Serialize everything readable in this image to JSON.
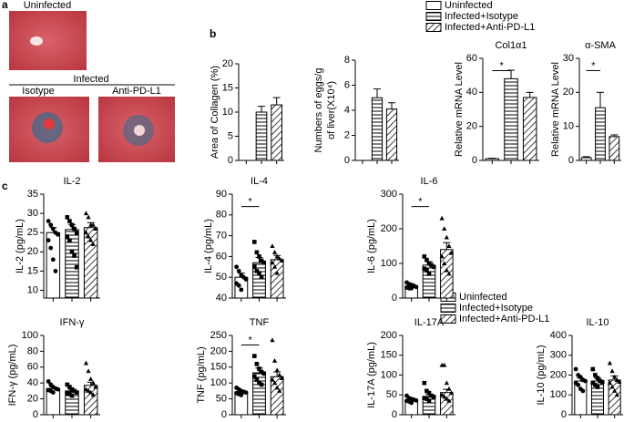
{
  "panels": {
    "a": "a",
    "b": "b",
    "c": "c",
    "uninfected": "Uninfected",
    "infected": "Infected",
    "isotype": "Isotype",
    "anti": "Anti-PD-L1"
  },
  "legends": [
    {
      "entries": [
        {
          "name": "Uninfected",
          "pattern": "blank"
        },
        {
          "name": "Infected+Isotype",
          "pattern": "hlines"
        },
        {
          "name": "Infected+Anti-PD-L1",
          "pattern": "diag"
        }
      ]
    },
    {
      "entries": [
        {
          "name": "Uninfected",
          "pattern": "blank"
        },
        {
          "name": "Infected+Isotype",
          "pattern": "hlines"
        },
        {
          "name": "Infected+Anti-PD-L1",
          "pattern": "diag"
        }
      ]
    }
  ],
  "chart_data": [
    {
      "type": "bar",
      "ylabel": "Area of Collagen (%)",
      "categories": [
        null,
        null,
        null
      ],
      "values": [
        null,
        10,
        11.5
      ],
      "errors": [
        null,
        1.2,
        1.5
      ],
      "ylim": [
        0,
        20
      ],
      "yticks": [
        0,
        5,
        10,
        15,
        20
      ]
    },
    {
      "type": "bar",
      "ylabel": [
        "Numbers of eggs/g",
        "of liver(X10⁴)"
      ],
      "categories": [
        null,
        null,
        null
      ],
      "values": [
        null,
        5,
        4.1
      ],
      "errors": [
        null,
        0.7,
        0.5
      ],
      "ylim": [
        0,
        8
      ],
      "yticks": [
        0,
        2,
        4,
        6,
        8
      ]
    },
    {
      "type": "bar",
      "title": "Col1α1",
      "ylabel": "Relative mRNA Level",
      "categories": [
        null,
        null,
        null
      ],
      "values": [
        1,
        48,
        37
      ],
      "errors": [
        0.3,
        5,
        3
      ],
      "ylim": [
        0,
        60
      ],
      "yticks": [
        0,
        20,
        40,
        60
      ],
      "significance": "*"
    },
    {
      "type": "bar",
      "title": "α-SMA",
      "ylabel": "Relative mRNA Level",
      "categories": [
        null,
        null,
        null
      ],
      "values": [
        0.8,
        15.5,
        7
      ],
      "errors": [
        0.3,
        4.5,
        0.5
      ],
      "ylim": [
        0,
        30
      ],
      "yticks": [
        0,
        10,
        20,
        30
      ],
      "significance": "*"
    },
    {
      "type": "bar",
      "title": "IL-2",
      "ylabel": "IL-2 (pg/mL)",
      "categories": [
        null,
        null,
        null
      ],
      "values": [
        25,
        25.8,
        26.3
      ],
      "errors": [
        1.3,
        1.3,
        1.3
      ],
      "ylim": [
        8,
        35
      ],
      "yticks": [
        10,
        15,
        20,
        25,
        30,
        35
      ],
      "points": [
        [
          28,
          27,
          26,
          25,
          24.5,
          23,
          21,
          18,
          15
        ],
        [
          29,
          28,
          27,
          26,
          25,
          24,
          23,
          20,
          19,
          16
        ],
        [
          30,
          29,
          27,
          27,
          26,
          25,
          24,
          23,
          22
        ]
      ]
    },
    {
      "type": "bar",
      "title": "IL-4",
      "ylabel": "IL-4 (pg/mL)",
      "categories": [
        null,
        null,
        null
      ],
      "values": [
        50,
        57,
        58.5
      ],
      "errors": [
        2,
        2.5,
        2
      ],
      "ylim": [
        40,
        90
      ],
      "yticks": [
        40,
        50,
        60,
        70,
        80,
        90
      ],
      "significance": "*",
      "points": [
        [
          55,
          53,
          51,
          50,
          49,
          47,
          46,
          44
        ],
        [
          67,
          62,
          60,
          58,
          57,
          55,
          53,
          52,
          50
        ],
        [
          65,
          62,
          60,
          59,
          58,
          57,
          55,
          52
        ]
      ]
    },
    {
      "type": "bar",
      "title": "IL-6",
      "ylabel": "IL-6 (pg/mL)",
      "categories": [
        null,
        null,
        null
      ],
      "values": [
        35,
        95,
        140
      ],
      "errors": [
        5,
        10,
        20
      ],
      "ylim": [
        0,
        300
      ],
      "yticks": [
        0,
        100,
        200,
        300
      ],
      "significance": "*",
      "points": [
        [
          45,
          40,
          38,
          35,
          32,
          30,
          28,
          28
        ],
        [
          120,
          110,
          100,
          95,
          90,
          85,
          80,
          70
        ],
        [
          230,
          200,
          175,
          150,
          130,
          120,
          100,
          80,
          70
        ]
      ]
    },
    {
      "type": "bar",
      "title": "IFN-γ",
      "ylabel": "IFN-γ (pg/mL)",
      "categories": [
        null,
        null,
        null
      ],
      "values": [
        33,
        30,
        37
      ],
      "errors": [
        2,
        2,
        4
      ],
      "ylim": [
        0,
        100
      ],
      "yticks": [
        0,
        20,
        40,
        60,
        80,
        100
      ],
      "points": [
        [
          42,
          38,
          35,
          33,
          32,
          31,
          30,
          28
        ],
        [
          38,
          35,
          32,
          30,
          28,
          27,
          26,
          24
        ],
        [
          65,
          55,
          45,
          40,
          35,
          32,
          30,
          28,
          25
        ]
      ]
    },
    {
      "type": "bar",
      "title": "TNF",
      "ylabel": "TNF (pg/mL)",
      "categories": [
        null,
        null,
        null
      ],
      "values": [
        72,
        132,
        120
      ],
      "errors": [
        5,
        15,
        15
      ],
      "ylim": [
        0,
        250
      ],
      "yticks": [
        0,
        50,
        100,
        150,
        200,
        250
      ],
      "significance": "*",
      "points": [
        [
          85,
          80,
          75,
          72,
          70,
          68,
          65,
          62
        ],
        [
          185,
          160,
          145,
          135,
          130,
          120,
          110,
          100,
          95
        ],
        [
          235,
          170,
          140,
          125,
          115,
          110,
          100,
          85,
          75
        ]
      ]
    },
    {
      "type": "bar",
      "title": "IL-17A",
      "ylabel": "IL-17A (pg/mL)",
      "categories": [
        null,
        null,
        null
      ],
      "values": [
        37,
        46,
        56
      ],
      "errors": [
        3,
        5,
        8
      ],
      "ylim": [
        0,
        200
      ],
      "yticks": [
        0,
        50,
        100,
        150,
        200
      ],
      "points": [
        [
          48,
          42,
          40,
          38,
          36,
          35,
          33,
          30
        ],
        [
          80,
          60,
          55,
          48,
          45,
          42,
          40,
          35
        ],
        [
          125,
          125,
          80,
          65,
          55,
          50,
          45,
          40,
          35
        ]
      ]
    },
    {
      "type": "bar",
      "title": "IL-10",
      "ylabel": "IL-10 (pg/mL)",
      "categories": [
        null,
        null,
        null
      ],
      "values": [
        170,
        170,
        175
      ],
      "errors": [
        15,
        15,
        20
      ],
      "ylim": [
        0,
        400
      ],
      "yticks": [
        0,
        100,
        200,
        300,
        400
      ],
      "points": [
        [
          230,
          200,
          190,
          175,
          170,
          160,
          150,
          130,
          120
        ],
        [
          230,
          200,
          185,
          170,
          165,
          160,
          150,
          140
        ],
        [
          260,
          220,
          190,
          175,
          165,
          160,
          140,
          120,
          100
        ]
      ]
    }
  ]
}
